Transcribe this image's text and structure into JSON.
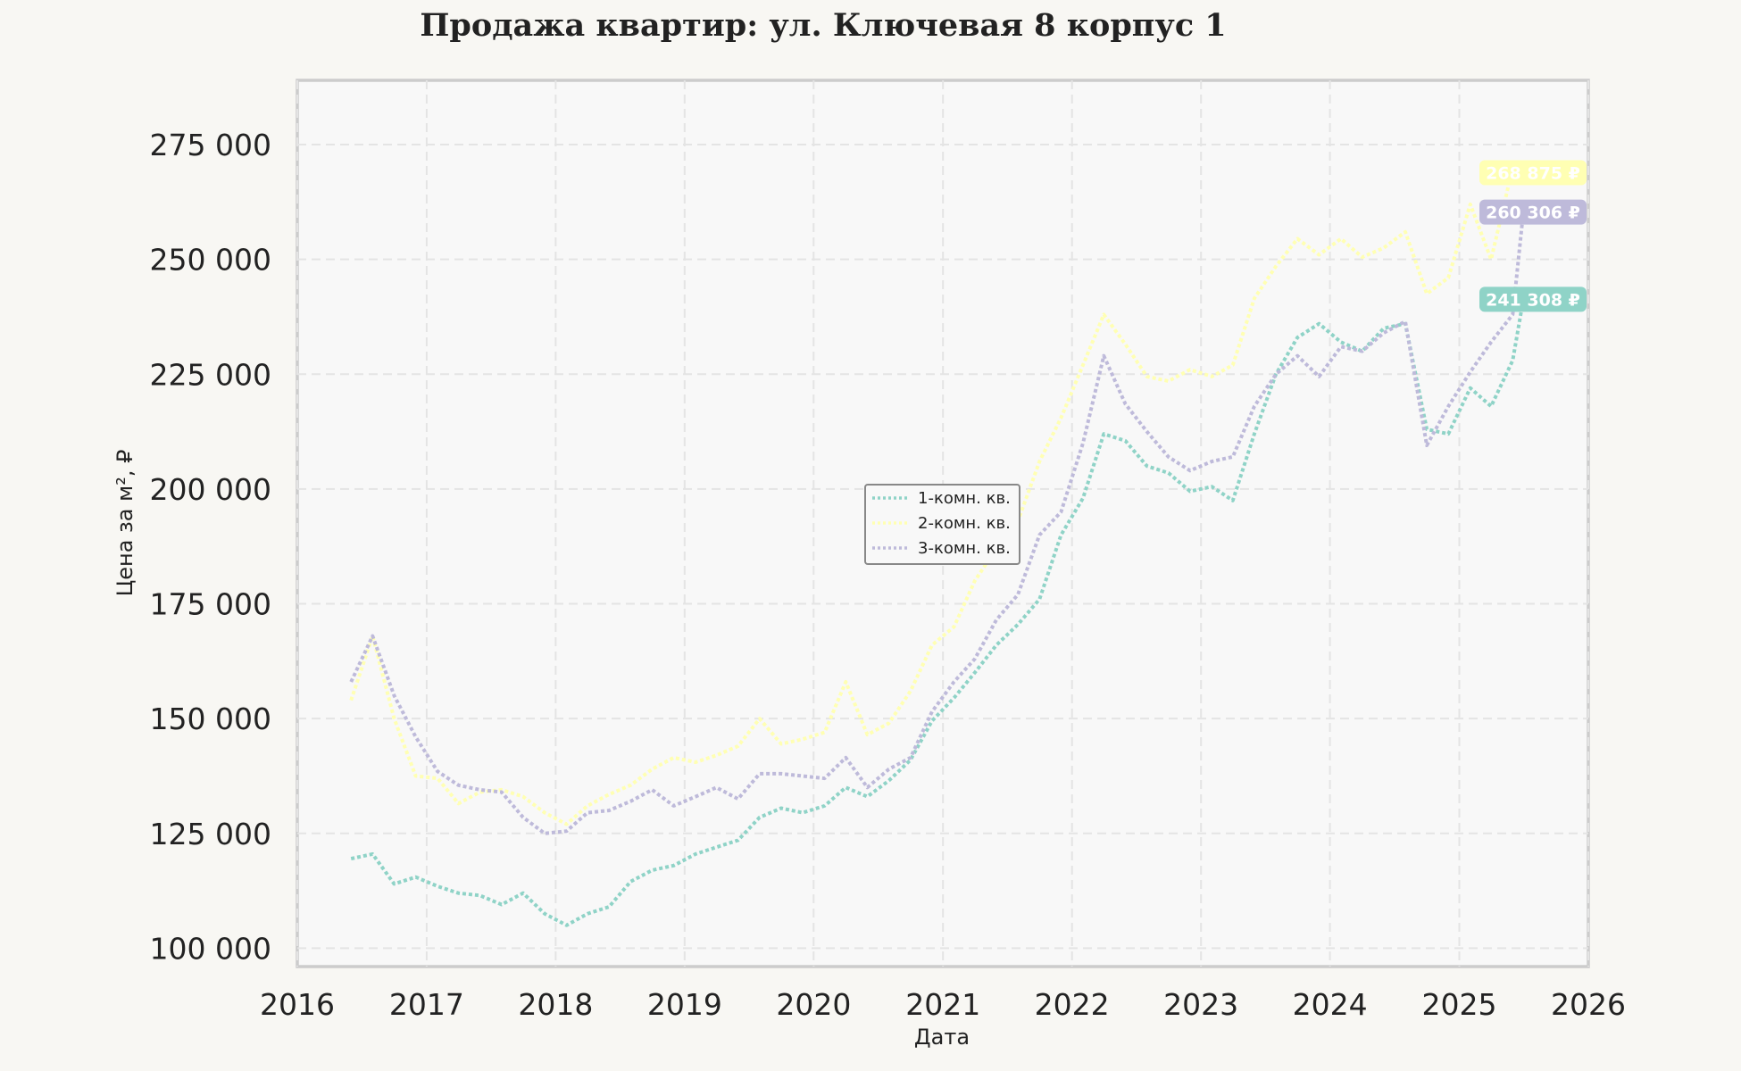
{
  "chart_data": {
    "type": "line",
    "title": "Продажа квартир: ул. Ключевая 8 корпус 1",
    "xlabel": "Дата",
    "ylabel": "Цена за м², ₽",
    "x_ticks": [
      "2016",
      "2017",
      "2018",
      "2019",
      "2020",
      "2021",
      "2022",
      "2023",
      "2024",
      "2025",
      "2026"
    ],
    "y_ticks": [
      "100 000",
      "125 000",
      "150 000",
      "175 000",
      "200 000",
      "225 000",
      "250 000",
      "275 000"
    ],
    "xlim": [
      "2016-01-01",
      "2026-01-01"
    ],
    "ylim": [
      96000,
      289000
    ],
    "grid": true,
    "legend_position": "center",
    "series": [
      {
        "name": "1-комн. кв.",
        "color": "#8fd3c7",
        "end_label": "241 308 ₽",
        "points": [
          [
            "2016-06-01",
            119500
          ],
          [
            "2016-08-01",
            120500
          ],
          [
            "2016-10-01",
            114000
          ],
          [
            "2016-12-01",
            115500
          ],
          [
            "2017-02-01",
            113500
          ],
          [
            "2017-04-01",
            112000
          ],
          [
            "2017-06-01",
            111500
          ],
          [
            "2017-08-01",
            109500
          ],
          [
            "2017-10-01",
            112000
          ],
          [
            "2017-12-01",
            107500
          ],
          [
            "2018-02-01",
            105000
          ],
          [
            "2018-04-01",
            107500
          ],
          [
            "2018-06-01",
            109000
          ],
          [
            "2018-08-01",
            114500
          ],
          [
            "2018-10-01",
            117000
          ],
          [
            "2018-12-01",
            118000
          ],
          [
            "2019-02-01",
            120500
          ],
          [
            "2019-04-01",
            122000
          ],
          [
            "2019-06-01",
            123500
          ],
          [
            "2019-08-01",
            128500
          ],
          [
            "2019-10-01",
            130500
          ],
          [
            "2019-12-01",
            129500
          ],
          [
            "2020-02-01",
            131000
          ],
          [
            "2020-04-01",
            135000
          ],
          [
            "2020-06-01",
            133000
          ],
          [
            "2020-08-01",
            136500
          ],
          [
            "2020-10-01",
            141000
          ],
          [
            "2020-12-01",
            149500
          ],
          [
            "2021-02-01",
            154500
          ],
          [
            "2021-04-01",
            160000
          ],
          [
            "2021-06-01",
            166000
          ],
          [
            "2021-08-01",
            170500
          ],
          [
            "2021-10-01",
            176000
          ],
          [
            "2021-12-01",
            190000
          ],
          [
            "2022-02-01",
            198000
          ],
          [
            "2022-04-01",
            212000
          ],
          [
            "2022-06-01",
            210500
          ],
          [
            "2022-08-01",
            205000
          ],
          [
            "2022-10-01",
            203500
          ],
          [
            "2022-12-01",
            199500
          ],
          [
            "2023-02-01",
            200500
          ],
          [
            "2023-04-01",
            197500
          ],
          [
            "2023-06-01",
            212000
          ],
          [
            "2023-08-01",
            225000
          ],
          [
            "2023-10-01",
            233000
          ],
          [
            "2023-12-01",
            236000
          ],
          [
            "2024-02-01",
            232000
          ],
          [
            "2024-04-01",
            230000
          ],
          [
            "2024-06-01",
            235000
          ],
          [
            "2024-08-01",
            236000
          ],
          [
            "2024-10-01",
            213000
          ],
          [
            "2024-12-01",
            212000
          ],
          [
            "2025-02-01",
            222000
          ],
          [
            "2025-04-01",
            218000
          ],
          [
            "2025-06-01",
            228000
          ],
          [
            "2025-07-01",
            241308
          ]
        ]
      },
      {
        "name": "2-комн. кв.",
        "color": "#ffffb3",
        "end_label": "268 875 ₽",
        "points": [
          [
            "2016-06-01",
            154000
          ],
          [
            "2016-08-01",
            168000
          ],
          [
            "2016-10-01",
            150000
          ],
          [
            "2016-12-01",
            137500
          ],
          [
            "2017-02-01",
            137000
          ],
          [
            "2017-04-01",
            131500
          ],
          [
            "2017-06-01",
            134000
          ],
          [
            "2017-08-01",
            134500
          ],
          [
            "2017-10-01",
            133000
          ],
          [
            "2017-12-01",
            129500
          ],
          [
            "2018-02-01",
            127000
          ],
          [
            "2018-04-01",
            131000
          ],
          [
            "2018-06-01",
            133500
          ],
          [
            "2018-08-01",
            135500
          ],
          [
            "2018-10-01",
            139000
          ],
          [
            "2018-12-01",
            141500
          ],
          [
            "2019-02-01",
            140500
          ],
          [
            "2019-04-01",
            142000
          ],
          [
            "2019-06-01",
            144000
          ],
          [
            "2019-08-01",
            150000
          ],
          [
            "2019-10-01",
            144500
          ],
          [
            "2019-12-01",
            145500
          ],
          [
            "2020-02-01",
            147000
          ],
          [
            "2020-04-01",
            158000
          ],
          [
            "2020-06-01",
            146500
          ],
          [
            "2020-08-01",
            149000
          ],
          [
            "2020-10-01",
            156000
          ],
          [
            "2020-12-01",
            166000
          ],
          [
            "2021-02-01",
            170000
          ],
          [
            "2021-04-01",
            180000
          ],
          [
            "2021-06-01",
            187000
          ],
          [
            "2021-08-01",
            193000
          ],
          [
            "2021-10-01",
            206000
          ],
          [
            "2021-12-01",
            215500
          ],
          [
            "2022-02-01",
            227000
          ],
          [
            "2022-04-01",
            238000
          ],
          [
            "2022-06-01",
            231500
          ],
          [
            "2022-08-01",
            224500
          ],
          [
            "2022-10-01",
            223500
          ],
          [
            "2022-12-01",
            226000
          ],
          [
            "2023-02-01",
            224500
          ],
          [
            "2023-04-01",
            227000
          ],
          [
            "2023-06-01",
            241500
          ],
          [
            "2023-08-01",
            248500
          ],
          [
            "2023-10-01",
            254500
          ],
          [
            "2023-12-01",
            251000
          ],
          [
            "2024-02-01",
            254500
          ],
          [
            "2024-04-01",
            250500
          ],
          [
            "2024-06-01",
            252500
          ],
          [
            "2024-08-01",
            256000
          ],
          [
            "2024-10-01",
            242500
          ],
          [
            "2024-12-01",
            246000
          ],
          [
            "2025-02-01",
            262000
          ],
          [
            "2025-04-01",
            250000
          ],
          [
            "2025-06-01",
            270000
          ],
          [
            "2025-07-01",
            268875
          ]
        ]
      },
      {
        "name": "3-комн. кв.",
        "color": "#bebada",
        "end_label": "260 306 ₽",
        "points": [
          [
            "2016-06-01",
            158000
          ],
          [
            "2016-08-01",
            168000
          ],
          [
            "2016-10-01",
            155000
          ],
          [
            "2016-12-01",
            146000
          ],
          [
            "2017-02-01",
            138500
          ],
          [
            "2017-04-01",
            135500
          ],
          [
            "2017-06-01",
            134500
          ],
          [
            "2017-08-01",
            134000
          ],
          [
            "2017-10-01",
            128500
          ],
          [
            "2017-12-01",
            125000
          ],
          [
            "2018-02-01",
            125500
          ],
          [
            "2018-04-01",
            129500
          ],
          [
            "2018-06-01",
            130000
          ],
          [
            "2018-08-01",
            132000
          ],
          [
            "2018-10-01",
            134500
          ],
          [
            "2018-12-01",
            131000
          ],
          [
            "2019-02-01",
            133000
          ],
          [
            "2019-04-01",
            135000
          ],
          [
            "2019-06-01",
            132500
          ],
          [
            "2019-08-01",
            138000
          ],
          [
            "2019-10-01",
            138000
          ],
          [
            "2019-12-01",
            137500
          ],
          [
            "2020-02-01",
            137000
          ],
          [
            "2020-04-01",
            141500
          ],
          [
            "2020-06-01",
            135000
          ],
          [
            "2020-08-01",
            139000
          ],
          [
            "2020-10-01",
            141500
          ],
          [
            "2020-12-01",
            151500
          ],
          [
            "2021-02-01",
            158000
          ],
          [
            "2021-04-01",
            163000
          ],
          [
            "2021-06-01",
            171500
          ],
          [
            "2021-08-01",
            177000
          ],
          [
            "2021-10-01",
            190000
          ],
          [
            "2021-12-01",
            195000
          ],
          [
            "2022-02-01",
            210000
          ],
          [
            "2022-04-01",
            229000
          ],
          [
            "2022-06-01",
            218500
          ],
          [
            "2022-08-01",
            212500
          ],
          [
            "2022-10-01",
            207000
          ],
          [
            "2022-12-01",
            204000
          ],
          [
            "2023-02-01",
            206000
          ],
          [
            "2023-04-01",
            207000
          ],
          [
            "2023-06-01",
            218000
          ],
          [
            "2023-08-01",
            225000
          ],
          [
            "2023-10-01",
            229000
          ],
          [
            "2023-12-01",
            224500
          ],
          [
            "2024-02-01",
            231000
          ],
          [
            "2024-04-01",
            230000
          ],
          [
            "2024-06-01",
            234000
          ],
          [
            "2024-08-01",
            236500
          ],
          [
            "2024-10-01",
            209500
          ],
          [
            "2024-12-01",
            218000
          ],
          [
            "2025-02-01",
            225500
          ],
          [
            "2025-04-01",
            232000
          ],
          [
            "2025-06-01",
            238000
          ],
          [
            "2025-07-01",
            260306
          ]
        ]
      }
    ]
  }
}
